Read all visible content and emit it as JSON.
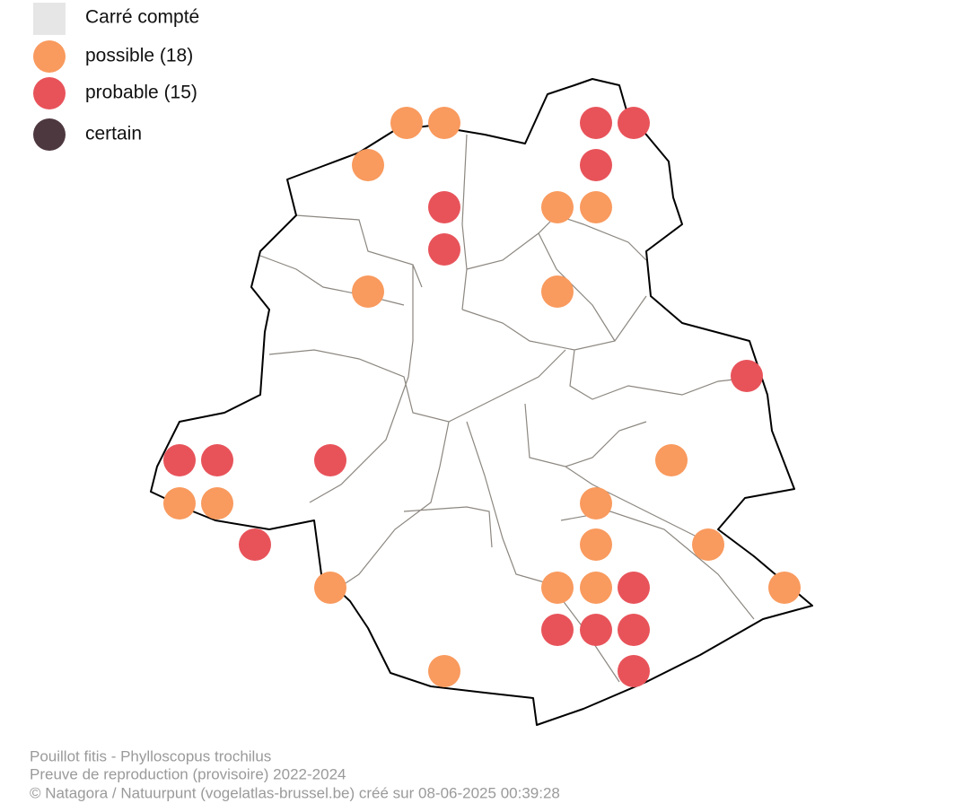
{
  "legend": {
    "items": [
      {
        "label": "Carré compté",
        "color": "#e6e6e6"
      },
      {
        "label": "possible (18)",
        "color": "#f99a5e"
      },
      {
        "label": "probable (15)",
        "color": "#e8535a"
      },
      {
        "label": "certain",
        "color": "#4e3840"
      }
    ]
  },
  "footer": {
    "lines": [
      "Pouillot fitis - Phylloscopus trochilus",
      "Preuve de reproduction (provisoire) 2022-2024",
      "© Natagora / Natuurpunt (vogelatlas-brussel.be) créé sur 08-06-2025 00:39:28"
    ]
  }
}
